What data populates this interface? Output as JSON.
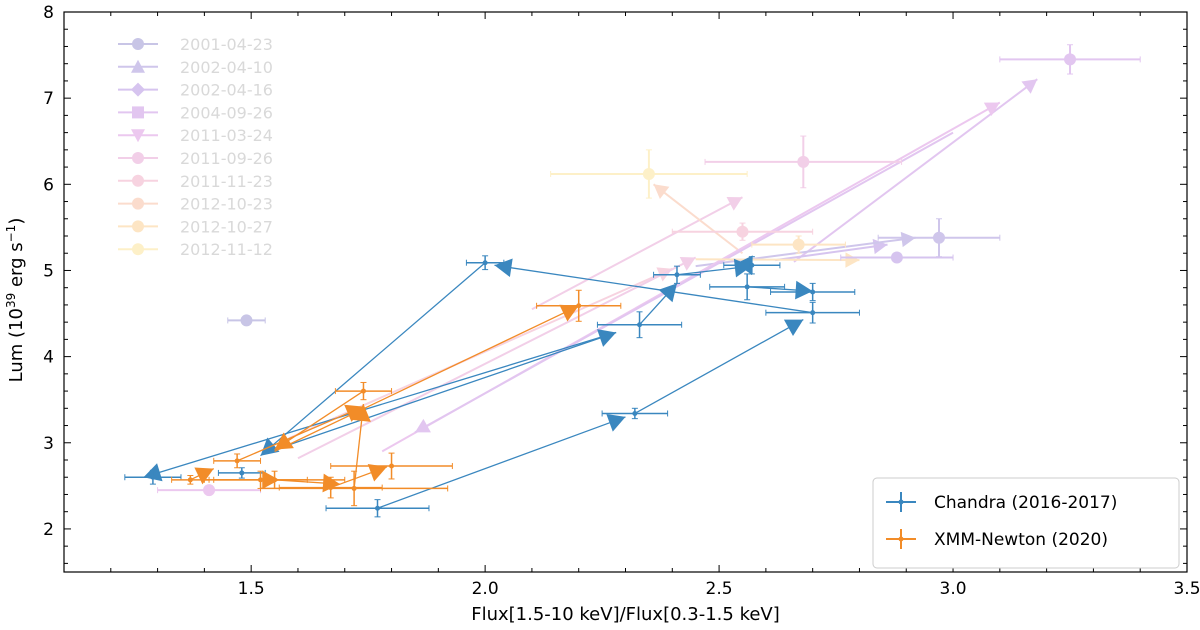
{
  "chart_data": {
    "type": "scatter",
    "xlabel": "Flux[1.5-10 keV]/Flux[0.3-1.5 keV]",
    "ylabel_prefix": "Lum (10",
    "ylabel_exp": "39",
    "ylabel_mid": " erg s",
    "ylabel_exp2": "−1",
    "ylabel_suffix": ")",
    "xlim": [
      1.1,
      3.5
    ],
    "ylim": [
      1.5,
      8.0
    ],
    "xticks": [
      1.5,
      2.0,
      2.5,
      3.0,
      3.5
    ],
    "xtick_labels": [
      "1.5",
      "2.0",
      "2.5",
      "3.0",
      "3.5"
    ],
    "yticks": [
      2,
      3,
      4,
      5,
      6,
      7,
      8
    ],
    "ytick_labels": [
      "2",
      "3",
      "4",
      "5",
      "6",
      "7",
      "8"
    ],
    "legend_faded": [
      "2001-04-23",
      "2002-04-10",
      "2002-04-16",
      "2004-09-26",
      "2011-03-24",
      "2011-09-26",
      "2011-11-23",
      "2012-10-23",
      "2012-10-27",
      "2012-11-12"
    ],
    "legend_faded_colors": [
      "#c8c5e6",
      "#cfc6eb",
      "#d6c4ef",
      "#e2c6f0",
      "#ecc8ef",
      "#f2cfe8",
      "#f7d3e0",
      "#fbdccd",
      "#fde5c4",
      "#fdf0c8"
    ],
    "faded_points": [
      {
        "x": 1.49,
        "y": 4.42,
        "xerr": 0.04,
        "yerr": 0.02,
        "color": "#c8c5e6"
      },
      {
        "x": 2.97,
        "y": 5.38,
        "xerr": 0.13,
        "yerr": 0.22,
        "color": "#cfc6eb"
      },
      {
        "x": 3.25,
        "y": 7.45,
        "xerr": 0.15,
        "yerr": 0.17,
        "color": "#e2c6f0"
      },
      {
        "x": 2.68,
        "y": 6.26,
        "xerr": 0.21,
        "yerr": 0.3,
        "color": "#f2cfe8"
      },
      {
        "x": 2.35,
        "y": 6.12,
        "xerr": 0.21,
        "yerr": 0.28,
        "color": "#fdf0c8"
      },
      {
        "x": 2.55,
        "y": 5.45,
        "xerr": 0.15,
        "yerr": 0.1,
        "color": "#f7d3e0"
      },
      {
        "x": 2.67,
        "y": 5.3,
        "xerr": 0.1,
        "yerr": 0.1,
        "color": "#fde5c4"
      },
      {
        "x": 1.41,
        "y": 2.45,
        "xerr": 0.11,
        "yerr": 0.05,
        "color": "#ecc8ef"
      },
      {
        "x": 2.88,
        "y": 5.15,
        "xerr": 0.12,
        "yerr": 0.05,
        "color": "#d6c4ef"
      }
    ],
    "faded_arrows": [
      {
        "x1": 2.66,
        "y1": 5.1,
        "x2": 3.18,
        "y2": 7.22,
        "color": "#e2c6f0"
      },
      {
        "x1": 2.62,
        "y1": 5.12,
        "x2": 2.86,
        "y2": 5.3,
        "color": "#d6c4ef"
      },
      {
        "x1": 2.1,
        "y1": 4.55,
        "x2": 2.55,
        "y2": 5.85,
        "color": "#f2cfe8"
      },
      {
        "x1": 2.55,
        "y1": 5.2,
        "x2": 2.36,
        "y2": 6.0,
        "color": "#fbdccd"
      },
      {
        "x1": 2.45,
        "y1": 5.05,
        "x2": 2.92,
        "y2": 5.38,
        "color": "#cfc6eb"
      },
      {
        "x1": 1.78,
        "y1": 2.9,
        "x2": 3.1,
        "y2": 6.95,
        "color": "#ecc8ef"
      },
      {
        "x1": 3.0,
        "y1": 6.6,
        "x2": 1.85,
        "y2": 3.12,
        "color": "#e2c6f0"
      },
      {
        "x1": 1.58,
        "y1": 3.05,
        "x2": 2.4,
        "y2": 5.02,
        "color": "#f7d3e0"
      },
      {
        "x1": 1.6,
        "y1": 2.82,
        "x2": 2.45,
        "y2": 5.15,
        "color": "#f2cfe8"
      },
      {
        "x1": 2.45,
        "y1": 5.13,
        "x2": 2.8,
        "y2": 5.12,
        "color": "#fde5c4"
      }
    ],
    "series": [
      {
        "name": "Chandra (2016-2017)",
        "color": "#3a87bf",
        "points": [
          {
            "x": 1.29,
            "y": 2.6,
            "xerr": 0.06,
            "yerr": 0.08
          },
          {
            "x": 1.77,
            "y": 2.24,
            "xerr": 0.11,
            "yerr": 0.1
          },
          {
            "x": 2.32,
            "y": 3.34,
            "xerr": 0.07,
            "yerr": 0.06
          },
          {
            "x": 2.7,
            "y": 4.51,
            "xerr": 0.1,
            "yerr": 0.12
          },
          {
            "x": 2.0,
            "y": 5.09,
            "xerr": 0.04,
            "yerr": 0.08
          },
          {
            "x": 2.33,
            "y": 4.37,
            "xerr": 0.09,
            "yerr": 0.15
          },
          {
            "x": 2.41,
            "y": 4.95,
            "xerr": 0.05,
            "yerr": 0.1
          },
          {
            "x": 2.56,
            "y": 4.81,
            "xerr": 0.08,
            "yerr": 0.15
          },
          {
            "x": 2.57,
            "y": 5.06,
            "xerr": 0.06,
            "yerr": 0.1
          },
          {
            "x": 2.7,
            "y": 4.75,
            "xerr": 0.09,
            "yerr": 0.1
          },
          {
            "x": 1.48,
            "y": 2.65,
            "xerr": 0.05,
            "yerr": 0.06
          }
        ],
        "arrows": [
          {
            "x1": 1.77,
            "y1": 2.24,
            "x2": 2.3,
            "y2": 3.3
          },
          {
            "x1": 2.32,
            "y1": 3.34,
            "x2": 2.68,
            "y2": 4.43
          },
          {
            "x1": 2.7,
            "y1": 4.51,
            "x2": 2.02,
            "y2": 5.06
          },
          {
            "x1": 2.0,
            "y1": 5.09,
            "x2": 1.52,
            "y2": 2.85
          },
          {
            "x1": 1.54,
            "y1": 2.9,
            "x2": 2.28,
            "y2": 4.28
          },
          {
            "x1": 2.28,
            "y1": 4.28,
            "x2": 1.27,
            "y2": 2.6
          },
          {
            "x1": 2.33,
            "y1": 4.37,
            "x2": 2.41,
            "y2": 4.85
          },
          {
            "x1": 2.41,
            "y1": 4.95,
            "x2": 2.57,
            "y2": 5.05
          },
          {
            "x1": 2.56,
            "y1": 5.06,
            "x2": 2.57,
            "y2": 4.95
          },
          {
            "x1": 2.56,
            "y1": 4.81,
            "x2": 2.7,
            "y2": 4.76
          }
        ]
      },
      {
        "name": "XMM-Newton (2020)",
        "color": "#f28c28",
        "points": [
          {
            "x": 2.2,
            "y": 4.59,
            "xerr": 0.09,
            "yerr": 0.18
          },
          {
            "x": 1.74,
            "y": 3.6,
            "xerr": 0.06,
            "yerr": 0.1
          },
          {
            "x": 1.37,
            "y": 2.57,
            "xerr": 0.04,
            "yerr": 0.05
          },
          {
            "x": 1.47,
            "y": 2.79,
            "xerr": 0.05,
            "yerr": 0.08
          },
          {
            "x": 1.55,
            "y": 2.57,
            "xerr": 0.15,
            "yerr": 0.1
          },
          {
            "x": 1.67,
            "y": 2.48,
            "xerr": 0.11,
            "yerr": 0.12
          },
          {
            "x": 1.72,
            "y": 2.47,
            "xerr": 0.2,
            "yerr": 0.2
          },
          {
            "x": 1.8,
            "y": 2.73,
            "xerr": 0.13,
            "yerr": 0.15
          },
          {
            "x": 1.52,
            "y": 2.57,
            "xerr": 0.1,
            "yerr": 0.1
          }
        ],
        "arrows": [
          {
            "x1": 1.55,
            "y1": 2.9,
            "x2": 2.2,
            "y2": 4.59
          },
          {
            "x1": 1.74,
            "y1": 3.6,
            "x2": 1.55,
            "y2": 2.92
          },
          {
            "x1": 1.37,
            "y1": 2.57,
            "x2": 1.42,
            "y2": 2.7
          },
          {
            "x1": 1.47,
            "y1": 2.79,
            "x2": 1.74,
            "y2": 3.42
          },
          {
            "x1": 1.72,
            "y1": 2.47,
            "x2": 1.74,
            "y2": 3.45
          },
          {
            "x1": 1.4,
            "y1": 2.57,
            "x2": 1.56,
            "y2": 2.57
          },
          {
            "x1": 1.55,
            "y1": 2.57,
            "x2": 1.69,
            "y2": 2.52
          },
          {
            "x1": 1.67,
            "y1": 2.48,
            "x2": 1.79,
            "y2": 2.72
          }
        ]
      }
    ]
  }
}
